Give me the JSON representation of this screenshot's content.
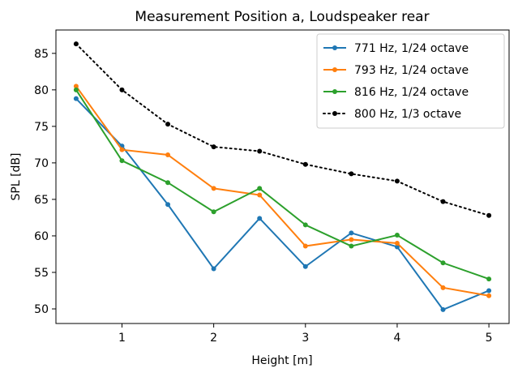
{
  "chart_data": {
    "type": "line",
    "title": "Measurement Position a, Loudspeaker rear",
    "xlabel": "Height [m]",
    "ylabel": "SPL [dB]",
    "xlim": [
      0.28,
      5.22
    ],
    "ylim": [
      48.0,
      88.2
    ],
    "xticks": [
      1,
      2,
      3,
      4,
      5
    ],
    "yticks": [
      50,
      55,
      60,
      65,
      70,
      75,
      80,
      85
    ],
    "grid": false,
    "legend_position": "upper right",
    "x": [
      0.5,
      1.0,
      1.5,
      2.0,
      2.5,
      3.0,
      3.5,
      4.0,
      4.5,
      5.0
    ],
    "series": [
      {
        "name": "771 Hz, 1/24 octave",
        "color": "#1f77b4",
        "style": "solid",
        "values": [
          78.8,
          72.3,
          64.3,
          55.5,
          62.4,
          55.8,
          60.4,
          58.5,
          49.9,
          52.5
        ]
      },
      {
        "name": "793 Hz, 1/24 octave",
        "color": "#ff7f0e",
        "style": "solid",
        "values": [
          80.5,
          71.8,
          71.1,
          66.5,
          65.6,
          58.6,
          59.5,
          59.0,
          52.9,
          51.8
        ]
      },
      {
        "name": "816 Hz, 1/24 octave",
        "color": "#2ca02c",
        "style": "solid",
        "values": [
          80.0,
          70.3,
          67.3,
          63.3,
          66.5,
          61.5,
          58.6,
          60.1,
          56.3,
          54.1
        ]
      },
      {
        "name": "800 Hz, 1/3 octave",
        "color": "#000000",
        "style": "dotted",
        "values": [
          86.3,
          80.0,
          75.3,
          72.2,
          71.6,
          69.8,
          68.5,
          67.5,
          64.7,
          62.8
        ]
      }
    ]
  }
}
